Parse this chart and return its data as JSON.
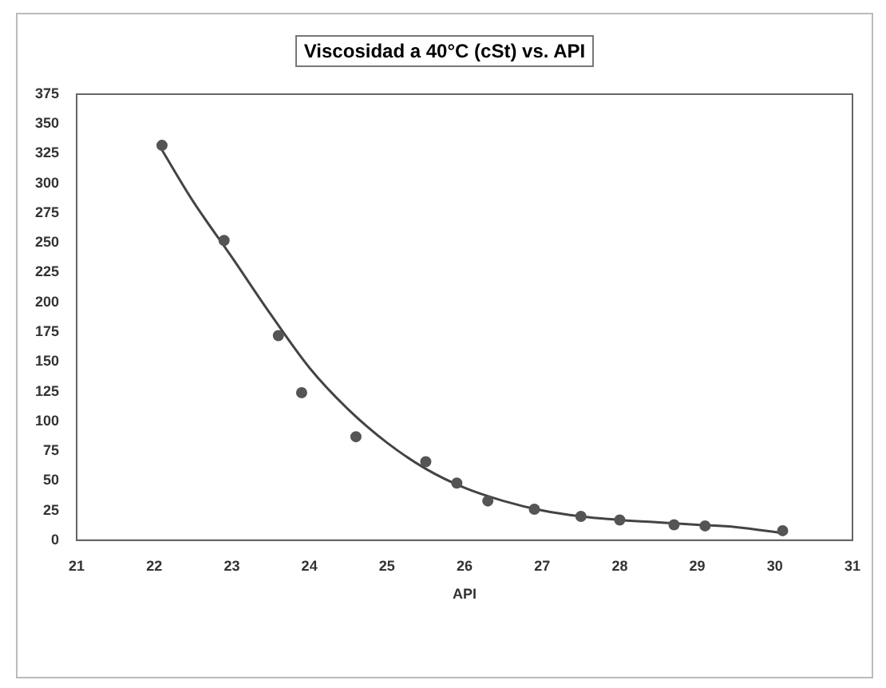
{
  "chart_data": {
    "type": "scatter",
    "title": "Viscosidad a 40°C (cSt) vs. API",
    "xlabel": "API",
    "xlim": [
      21,
      31
    ],
    "xticks": [
      21,
      22,
      23,
      24,
      25,
      26,
      27,
      28,
      29,
      30,
      31
    ],
    "ylim": [
      0,
      375
    ],
    "yticks": [
      0,
      25,
      50,
      75,
      100,
      125,
      150,
      175,
      200,
      225,
      250,
      275,
      300,
      325,
      350,
      375
    ],
    "grid": false,
    "legend": false,
    "marker": "circle",
    "series": [
      {
        "type": "scatter",
        "color": "#555555",
        "x": [
          22.1,
          22.9,
          23.6,
          23.9,
          24.6,
          25.5,
          25.9,
          26.3,
          26.9,
          27.5,
          28.0,
          28.7,
          29.1,
          30.1
        ],
        "values": [
          332,
          252,
          172,
          124,
          87,
          66,
          48,
          33,
          26,
          20,
          17,
          13,
          12,
          8
        ]
      },
      {
        "type": "line",
        "color": "#444444",
        "marker": "none",
        "x": [
          22.1,
          22.5,
          23,
          23.5,
          24,
          24.5,
          25,
          25.5,
          26,
          26.5,
          27,
          27.5,
          28,
          28.5,
          29,
          29.5,
          30.1
        ],
        "values": [
          328,
          285,
          238,
          190,
          145,
          110,
          82,
          60,
          44,
          33,
          25,
          20,
          17,
          15,
          13,
          11,
          6
        ]
      }
    ]
  }
}
